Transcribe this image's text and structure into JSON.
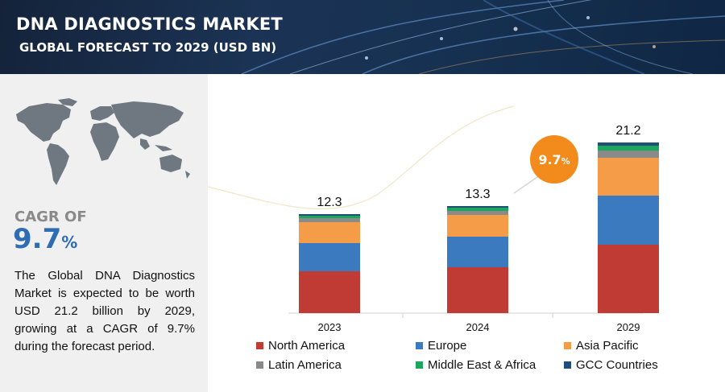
{
  "header": {
    "title": "DNA DIAGNOSTICS MARKET",
    "subtitle": "GLOBAL FORECAST TO 2029 (USD BN)"
  },
  "summary": {
    "cagr_label": "CAGR OF",
    "cagr_value": "9.7",
    "cagr_unit": "%",
    "description": "The Global DNA Diagnostics Market is expected to be worth USD 21.2 billion by 2029, growing at a CAGR of 9.7% during the forecast period."
  },
  "badge": {
    "value": "9.7",
    "unit": "%"
  },
  "colors": {
    "north_america": "#bf3b34",
    "europe": "#3c7abf",
    "asia_pacific": "#f59c48",
    "latin_america": "#8a8a8a",
    "middle_east_africa": "#1aa65b",
    "gcc": "#1f4e79",
    "badge": "#f28a1c"
  },
  "chart_data": {
    "type": "bar",
    "stacked": true,
    "categories": [
      "2023",
      "2024",
      "2029"
    ],
    "totals": [
      12.3,
      13.3,
      21.2
    ],
    "total_labels": [
      "12.3",
      "13.3",
      "21.2"
    ],
    "ylim": [
      0,
      24
    ],
    "grid": false,
    "legend_position": "bottom",
    "series": [
      {
        "name": "North America",
        "color": "#bf3b34",
        "values": [
          5.2,
          5.7,
          8.5
        ]
      },
      {
        "name": "Europe",
        "color": "#3c7abf",
        "values": [
          3.5,
          3.8,
          6.1
        ]
      },
      {
        "name": "Asia Pacific",
        "color": "#f59c48",
        "values": [
          2.6,
          2.7,
          4.7
        ]
      },
      {
        "name": "Latin America",
        "color": "#8a8a8a",
        "values": [
          0.5,
          0.5,
          0.9
        ]
      },
      {
        "name": "Middle East & Africa",
        "color": "#1aa65b",
        "values": [
          0.3,
          0.4,
          0.6
        ]
      },
      {
        "name": "GCC Countries",
        "color": "#1f4e79",
        "values": [
          0.2,
          0.2,
          0.4
        ]
      }
    ]
  }
}
